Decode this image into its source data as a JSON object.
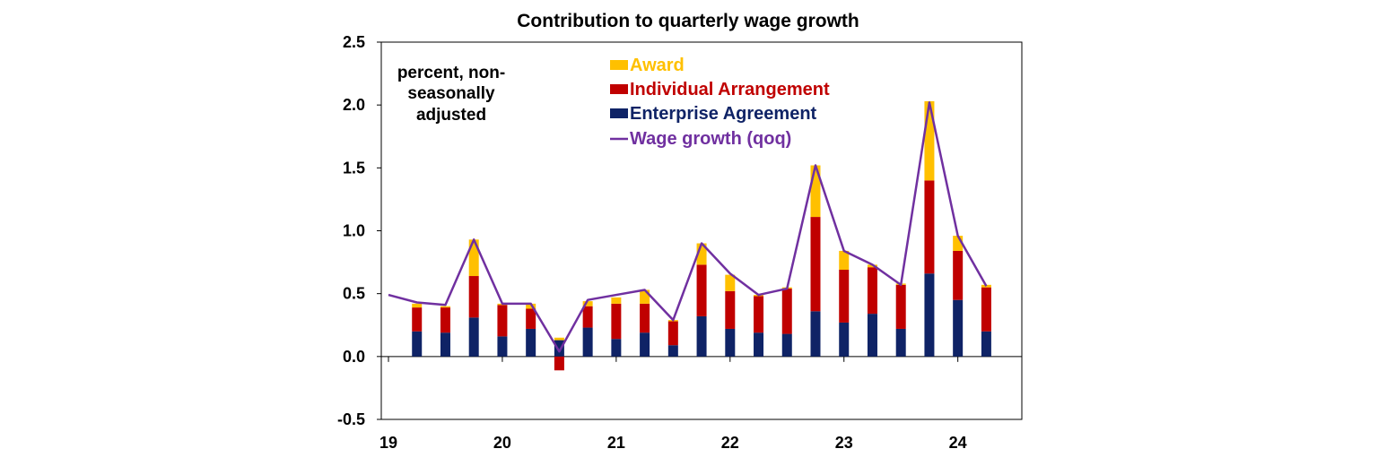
{
  "chart_data": {
    "type": "bar",
    "stacked": true,
    "title": "Contribution to quarterly wage growth",
    "annotation": [
      "percent, non-",
      "seasonally",
      "adjusted"
    ],
    "ylim": [
      -0.5,
      2.5
    ],
    "yticks": [
      "2.5",
      "2.0",
      "1.5",
      "1.0",
      "0.5",
      "0.0",
      "-0.5"
    ],
    "ytick_values": [
      2.5,
      2.0,
      1.5,
      1.0,
      0.5,
      0.0,
      -0.5
    ],
    "xtick_labels": [
      {
        "label": "19",
        "index": 0
      },
      {
        "label": "20",
        "index": 4
      },
      {
        "label": "21",
        "index": 8
      },
      {
        "label": "22",
        "index": 12
      },
      {
        "label": "23",
        "index": 16
      },
      {
        "label": "24",
        "index": 20
      }
    ],
    "legend_position": "top-center",
    "series": [
      {
        "name": "Enterprise Agreement",
        "color": "#0f2366",
        "values": [
          null,
          0.2,
          0.19,
          0.31,
          0.16,
          0.22,
          0.13,
          0.23,
          0.14,
          0.19,
          0.09,
          0.32,
          0.22,
          0.19,
          0.18,
          0.36,
          0.27,
          0.34,
          0.22,
          0.66,
          0.45,
          0.2
        ]
      },
      {
        "name": "Individual Arrangement",
        "color": "#c00000",
        "values": [
          null,
          0.19,
          0.2,
          0.33,
          0.25,
          0.16,
          -0.11,
          0.17,
          0.28,
          0.23,
          0.19,
          0.41,
          0.3,
          0.29,
          0.36,
          0.75,
          0.42,
          0.37,
          0.35,
          0.74,
          0.39,
          0.35
        ]
      },
      {
        "name": "Award",
        "color": "#ffc000",
        "values": [
          null,
          0.03,
          0.01,
          0.29,
          0.01,
          0.04,
          0.02,
          0.04,
          0.05,
          0.11,
          0.01,
          0.17,
          0.13,
          0.01,
          0.01,
          0.41,
          0.15,
          0.02,
          0.01,
          0.63,
          0.12,
          0.02
        ]
      },
      {
        "name": "Wage growth (qoq)",
        "color": "#7030a0",
        "type": "line",
        "values": [
          0.49,
          0.43,
          0.41,
          0.93,
          0.42,
          0.42,
          0.04,
          0.45,
          0.49,
          0.53,
          0.29,
          0.9,
          0.66,
          0.49,
          0.54,
          1.52,
          0.84,
          0.73,
          0.57,
          2.02,
          0.96,
          0.56
        ]
      }
    ]
  }
}
